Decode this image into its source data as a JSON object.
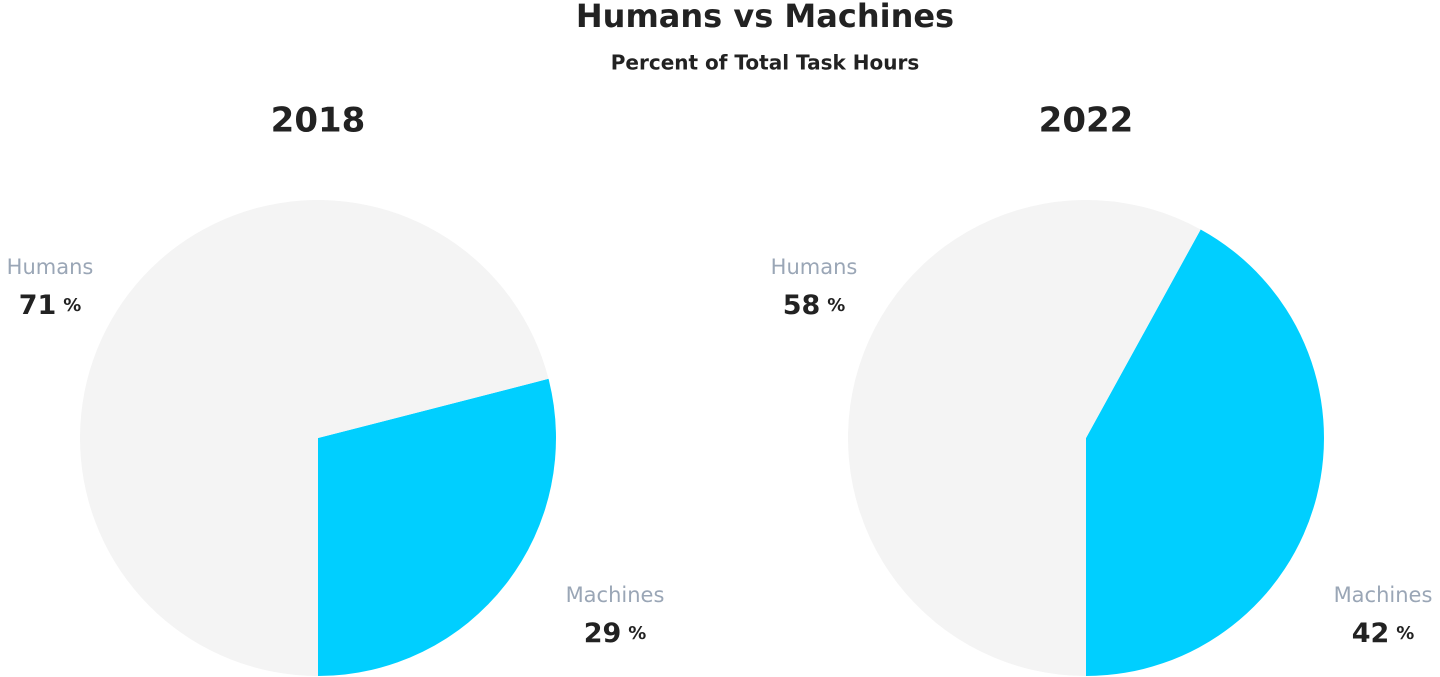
{
  "title": "Humans vs Machines",
  "subtitle": "Percent of Total Task Hours",
  "chart_data": [
    {
      "type": "pie",
      "title": "2018",
      "categories": [
        "Humans",
        "Machines"
      ],
      "values": [
        71,
        29
      ],
      "colors": [
        "#f4f4f4",
        "#00cfff"
      ],
      "value_suffix": "%"
    },
    {
      "type": "pie",
      "title": "2022",
      "categories": [
        "Humans",
        "Machines"
      ],
      "values": [
        58,
        42
      ],
      "colors": [
        "#f4f4f4",
        "#00cfff"
      ],
      "value_suffix": "%"
    }
  ]
}
